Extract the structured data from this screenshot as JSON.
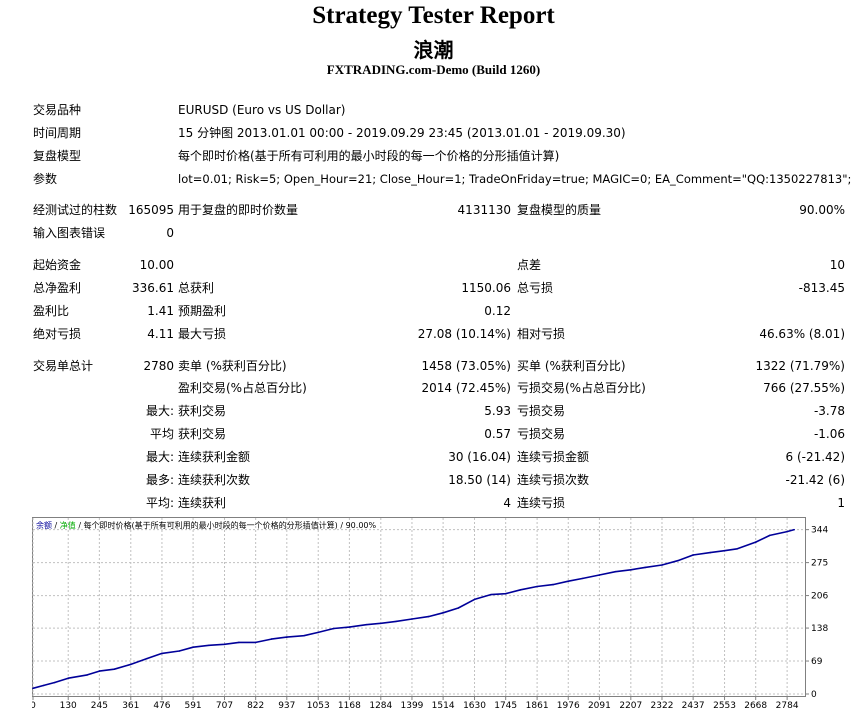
{
  "header": {
    "title": "Strategy Tester Report",
    "subtitle": "浪潮",
    "build": "FXTRADING.com-Demo (Build 1260)"
  },
  "info": {
    "symbol_label": "交易品种",
    "symbol_value": "EURUSD (Euro vs US Dollar)",
    "period_label": "时间周期",
    "period_value": "15 分钟图 2013.01.01 00:00 - 2019.09.29 23:45 (2013.01.01 - 2019.09.30)",
    "model_label": "复盘模型",
    "model_value": "每个即时价格(基于所有可利用的最小时段的每一个价格的分形插值计算)",
    "params_label": "参数",
    "params_value": "lot=0.01; Risk=5; Open_Hour=21; Close_Hour=1; TradeOnFriday=true; MAGIC=0; EA_Comment=\"QQ:1350227813\";"
  },
  "quality": {
    "bars_label": "经测试过的柱数",
    "bars_value": "165095",
    "ticks_label": "用于复盘的即时价数量",
    "ticks_value": "4131130",
    "quality_label": "复盘模型的质量",
    "quality_value": "90.00%",
    "errors_label": "输入图表错误",
    "errors_value": "0"
  },
  "stats": {
    "deposit_label": "起始资金",
    "deposit_value": "10.00",
    "spread_label": "点差",
    "spread_value": "10",
    "net_label": "总净盈利",
    "net_value": "336.61",
    "gross_profit_label": "总获利",
    "gross_profit_value": "1150.06",
    "gross_loss_label": "总亏损",
    "gross_loss_value": "-813.45",
    "pf_label": "盈利比",
    "pf_value": "1.41",
    "expected_label": "预期盈利",
    "expected_value": "0.12",
    "abs_dd_label": "绝对亏损",
    "abs_dd_value": "4.11",
    "max_dd_label": "最大亏损",
    "max_dd_value": "27.08 (10.14%)",
    "rel_dd_label": "相对亏损",
    "rel_dd_value": "46.63% (8.01)"
  },
  "trades": {
    "total_label": "交易单总计",
    "total_value": "2780",
    "short_label": "卖单 (%获利百分比)",
    "short_value": "1458 (73.05%)",
    "long_label": "买单 (%获利百分比)",
    "long_value": "1322 (71.79%)",
    "profit_trades_label": "盈利交易(%占总百分比)",
    "profit_trades_value": "2014 (72.45%)",
    "loss_trades_label": "亏损交易(%占总百分比)",
    "loss_trades_value": "766 (27.55%)",
    "largest_prefix": "最大:",
    "largest_profit_label": "获利交易",
    "largest_profit_value": "5.93",
    "largest_loss_label": "亏损交易",
    "largest_loss_value": "-3.78",
    "average_prefix": "平均",
    "average_profit_label": "获利交易",
    "average_profit_value": "0.57",
    "average_loss_label": "亏损交易",
    "average_loss_value": "-1.06",
    "max_prefix": "最大:",
    "max_cons_wins_label": "连续获利金额",
    "max_cons_wins_value": "30 (16.04)",
    "max_cons_losses_label": "连续亏损金额",
    "max_cons_losses_value": "6 (-21.42)",
    "maxn_prefix": "最多:",
    "max_cons_profit_label": "连续获利次数",
    "max_cons_profit_value": "18.50 (14)",
    "max_cons_loss_label": "连续亏损次数",
    "max_cons_loss_value": "-21.42 (6)",
    "avg_prefix": "平均:",
    "avg_cons_wins_label": "连续获利",
    "avg_cons_wins_value": "4",
    "avg_cons_losses_label": "连续亏损",
    "avg_cons_losses_value": "1"
  },
  "chart_data": {
    "type": "line",
    "legend": {
      "balance": "余额",
      "sep1": " / ",
      "equity": "净值",
      "sep2": " / ",
      "model": "每个即时价格(基于所有可利用的最小时段的每一个价格的分形插值计算)",
      "sep3": " / ",
      "quality": "90.00%"
    },
    "x_ticks": [
      "0",
      "130",
      "245",
      "361",
      "476",
      "591",
      "707",
      "822",
      "937",
      "1053",
      "1168",
      "1284",
      "1399",
      "1514",
      "1630",
      "1745",
      "1861",
      "1976",
      "2091",
      "2207",
      "2322",
      "2437",
      "2553",
      "2668",
      "2784"
    ],
    "y_ticks": [
      "0",
      "69",
      "138",
      "206",
      "275",
      "344"
    ],
    "xlim": [
      0,
      2850
    ],
    "ylim": [
      0,
      360
    ],
    "series": [
      {
        "color": "#000099",
        "x": [
          0,
          40,
          80,
          130,
          200,
          245,
          300,
          361,
          420,
          476,
          540,
          591,
          650,
          707,
          760,
          822,
          880,
          937,
          1000,
          1053,
          1110,
          1168,
          1230,
          1284,
          1340,
          1399,
          1460,
          1514,
          1570,
          1630,
          1690,
          1745,
          1800,
          1861,
          1920,
          1976,
          2030,
          2091,
          2150,
          2207,
          2260,
          2322,
          2380,
          2437,
          2500,
          2553,
          2600,
          2668,
          2720,
          2784,
          2810
        ],
        "y": [
          12,
          18,
          24,
          33,
          40,
          48,
          52,
          62,
          74,
          85,
          90,
          98,
          102,
          104,
          108,
          108,
          115,
          119,
          122,
          129,
          137,
          140,
          145,
          148,
          152,
          157,
          162,
          170,
          180,
          198,
          208,
          210,
          218,
          225,
          229,
          236,
          242,
          249,
          256,
          260,
          265,
          270,
          279,
          291,
          296,
          300,
          304,
          318,
          332,
          340,
          344
        ]
      }
    ],
    "title": "",
    "xlabel": "",
    "ylabel": ""
  }
}
